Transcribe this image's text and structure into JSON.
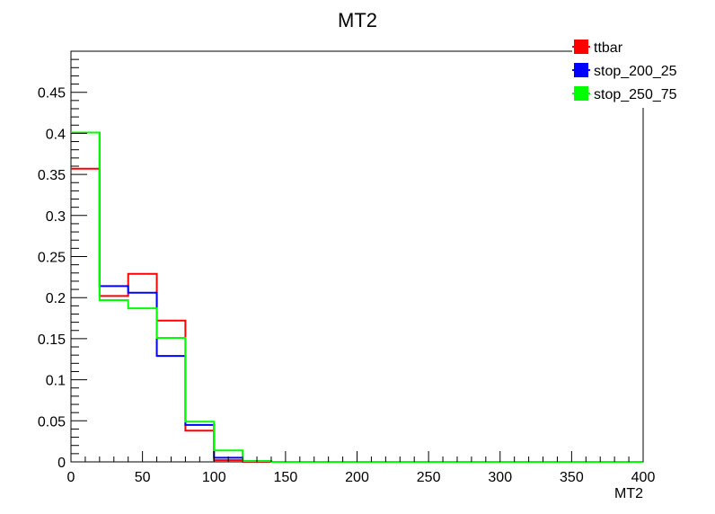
{
  "chart_data": {
    "type": "histogram",
    "title": "MT2",
    "xlabel": "MT2",
    "ylabel": "",
    "xlim": [
      0,
      400
    ],
    "ylim": [
      0,
      0.5
    ],
    "x_major_ticks": [
      0,
      50,
      100,
      150,
      200,
      250,
      300,
      350,
      400
    ],
    "y_major_ticks": [
      0,
      0.05,
      0.1,
      0.15,
      0.2,
      0.25,
      0.3,
      0.35,
      0.4,
      0.45
    ],
    "x_tick_labels": [
      "0",
      "50",
      "100",
      "150",
      "200",
      "250",
      "300",
      "350",
      "400"
    ],
    "y_tick_labels": [
      "0",
      "0.05",
      "0.1",
      "0.15",
      "0.2",
      "0.25",
      "0.3",
      "0.35",
      "0.4",
      "0.45"
    ],
    "bin_edges": [
      0,
      20,
      40,
      60,
      80,
      100,
      120,
      140,
      160,
      180,
      200,
      220,
      240,
      260,
      280,
      300,
      320,
      340,
      360,
      380,
      400
    ],
    "series": [
      {
        "name": "ttbar",
        "color": "#ff0000",
        "values": [
          0.357,
          0.202,
          0.229,
          0.172,
          0.038,
          0.002,
          0,
          0,
          0,
          0,
          0,
          0,
          0,
          0,
          0,
          0,
          0,
          0,
          0,
          0
        ]
      },
      {
        "name": "stop_200_25",
        "color": "#0000ff",
        "values": [
          0.401,
          0.214,
          0.206,
          0.129,
          0.045,
          0.005,
          0.001,
          0,
          0,
          0,
          0,
          0,
          0,
          0,
          0,
          0,
          0,
          0,
          0,
          0
        ]
      },
      {
        "name": "stop_250_75",
        "color": "#00ff00",
        "values": [
          0.401,
          0.197,
          0.187,
          0.151,
          0.049,
          0.014,
          0.001,
          0,
          0,
          0,
          0,
          0,
          0,
          0,
          0,
          0,
          0,
          0,
          0,
          0
        ]
      }
    ],
    "legend_position": "top-right",
    "grid": false
  }
}
